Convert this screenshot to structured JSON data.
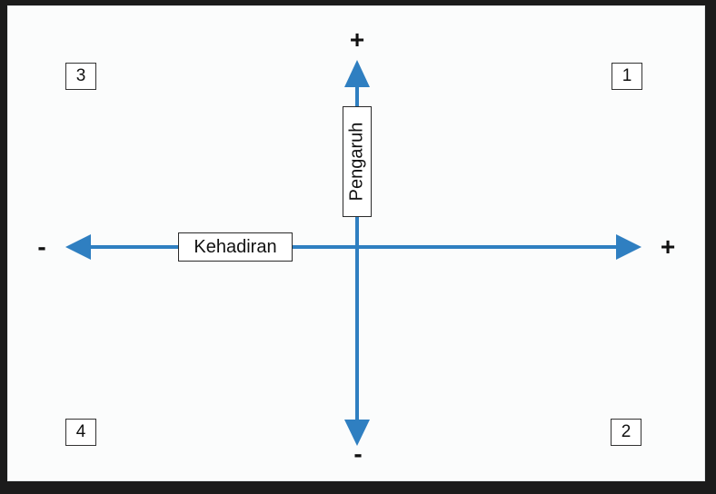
{
  "axes": {
    "horizontal": {
      "label": "Kehadiran",
      "negative_sign": "-",
      "positive_sign": "+"
    },
    "vertical": {
      "label": "Pengaruh",
      "positive_sign": "+",
      "negative_sign": "-"
    },
    "color": "#2f7fc1"
  },
  "quadrants": [
    {
      "number": "1",
      "position": "top-right"
    },
    {
      "number": "2",
      "position": "bottom-right"
    },
    {
      "number": "3",
      "position": "top-left"
    },
    {
      "number": "4",
      "position": "bottom-left"
    }
  ]
}
